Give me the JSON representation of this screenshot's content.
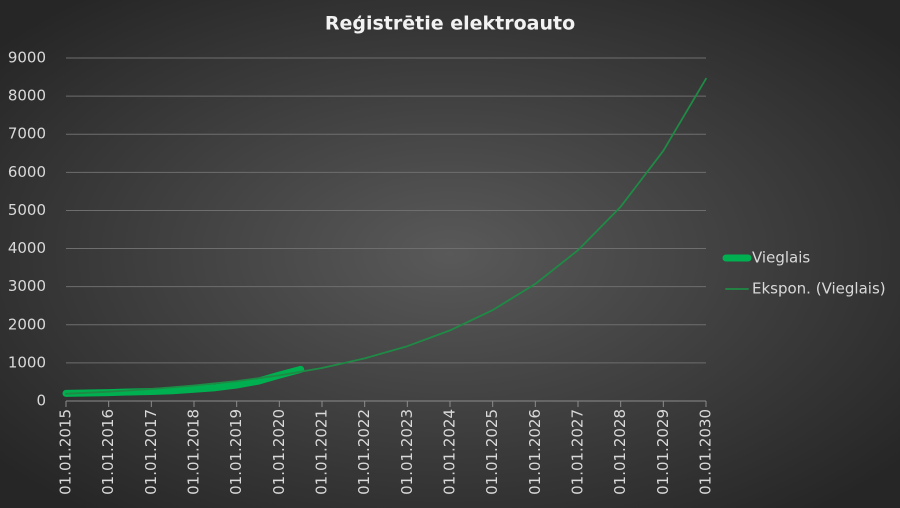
{
  "chart_data": {
    "type": "line",
    "title": "Reģistrētie elektroauto",
    "xticks": [
      "01.01.2015",
      "01.01.2016",
      "01.01.2017",
      "01.01.2018",
      "01.01.2019",
      "01.01.2020",
      "01.01.2021",
      "01.01.2022",
      "01.01.2023",
      "01.01.2024",
      "01.01.2025",
      "01.01.2026",
      "01.01.2027",
      "01.01.2028",
      "01.01.2029",
      "01.01.2030"
    ],
    "ylim": [
      0,
      9000
    ],
    "yticks": [
      0,
      1000,
      2000,
      3000,
      4000,
      5000,
      6000,
      7000,
      8000,
      9000
    ],
    "grid": true,
    "legend": "right",
    "series": [
      {
        "name": "Vieglais",
        "color": "#00b050",
        "x": [
          "01.01.2015",
          "01.07.2015",
          "01.01.2016",
          "01.07.2016",
          "01.01.2017",
          "01.07.2017",
          "01.01.2018",
          "01.07.2018",
          "01.01.2019",
          "01.07.2019",
          "01.01.2020",
          "01.07.2020"
        ],
        "values": [
          200,
          210,
          220,
          235,
          250,
          270,
          310,
          350,
          420,
          520,
          680,
          830
        ]
      },
      {
        "name": "Ekspon. (Vieglais)",
        "color": "#1f8a45",
        "x": [
          "01.01.2015",
          "01.01.2016",
          "01.01.2017",
          "01.01.2018",
          "01.01.2019",
          "01.01.2020",
          "01.01.2021",
          "01.01.2022",
          "01.01.2023",
          "01.01.2024",
          "01.01.2025",
          "01.01.2026",
          "01.01.2027",
          "01.01.2028",
          "01.01.2029",
          "01.01.2030"
        ],
        "values": [
          190,
          245,
          315,
          406,
          523,
          673,
          867,
          1117,
          1438,
          1852,
          2386,
          3073,
          3958,
          5098,
          6566,
          8457
        ]
      }
    ]
  }
}
